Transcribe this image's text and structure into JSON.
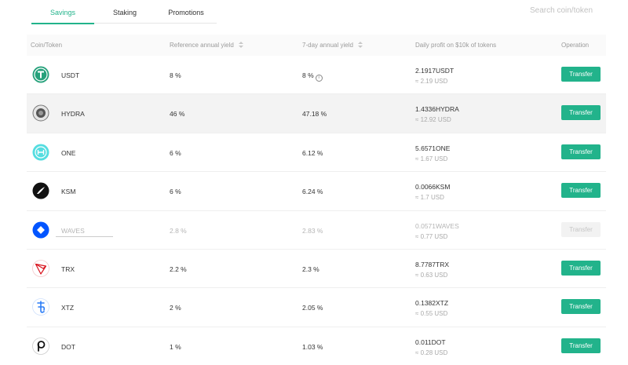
{
  "tabs": [
    {
      "label": "Savings",
      "active": true
    },
    {
      "label": "Staking",
      "active": false
    },
    {
      "label": "Promotions",
      "active": false
    }
  ],
  "search": {
    "placeholder": "Search coin/token"
  },
  "columns": {
    "coin": "Coin/Token",
    "reference_yield": "Reference annual yield",
    "seven_day_yield": "7-day annual yield",
    "daily_profit": "Daily profit on $10k of tokens",
    "operation": "Operation"
  },
  "rows": [
    {
      "name": "USDT",
      "ref": "8 %",
      "seven": "8 %",
      "profit": "2.1917USDT",
      "usd": "≈ 2.19 USD",
      "action": "Transfer",
      "icon": "tether-icon",
      "color": "#26a17b"
    },
    {
      "name": "HYDRA",
      "ref": "46 %",
      "seven": "47.18 %",
      "profit": "1.4336HYDRA",
      "usd": "≈ 12.92 USD",
      "action": "Transfer",
      "icon": "hydra-icon",
      "color": "#555555"
    },
    {
      "name": "ONE",
      "ref": "6 %",
      "seven": "6.12 %",
      "profit": "5.6571ONE",
      "usd": "≈ 1.67 USD",
      "action": "Transfer",
      "icon": "harmony-icon",
      "color": "#3ad5d5"
    },
    {
      "name": "KSM",
      "ref": "6 %",
      "seven": "6.24 %",
      "profit": "0.0066KSM",
      "usd": "≈ 1.7 USD",
      "action": "Transfer",
      "icon": "kusama-icon",
      "color": "#111111"
    },
    {
      "name": "WAVES",
      "ref": "2.8 %",
      "seven": "2.83 %",
      "profit": "0.0571WAVES",
      "usd": "≈ 0.77 USD",
      "action": "Transfer",
      "icon": "waves-icon",
      "color": "#0155ff"
    },
    {
      "name": "TRX",
      "ref": "2.2 %",
      "seven": "2.3 %",
      "profit": "8.7787TRX",
      "usd": "≈ 0.63 USD",
      "action": "Transfer",
      "icon": "tron-icon",
      "color": "#d9131d"
    },
    {
      "name": "XTZ",
      "ref": "2 %",
      "seven": "2.05 %",
      "profit": "0.1382XTZ",
      "usd": "≈ 0.55 USD",
      "action": "Transfer",
      "icon": "tezos-icon",
      "color": "#2c7df7"
    },
    {
      "name": "DOT",
      "ref": "1 %",
      "seven": "1.03 %",
      "profit": "0.011DOT",
      "usd": "≈ 0.28 USD",
      "action": "Transfer",
      "icon": "polkadot-icon",
      "color": "#111111"
    }
  ],
  "colors": {
    "accent": "#22b38b"
  }
}
